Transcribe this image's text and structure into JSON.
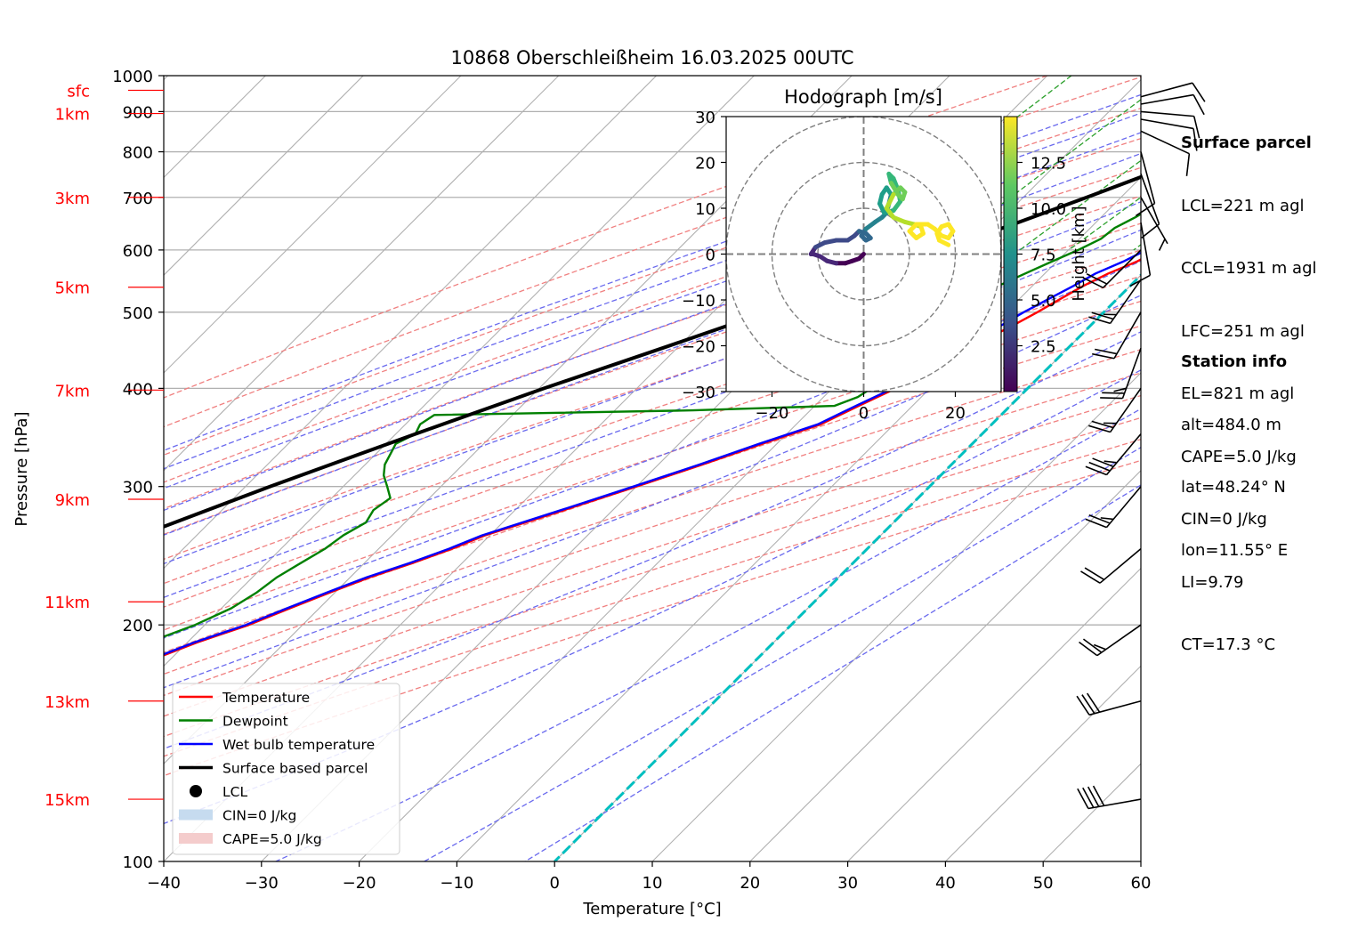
{
  "chart_data": {
    "type": "line",
    "title": "10868 Oberschleißheim 16.03.2025 00UTC",
    "xlabel": "Temperature [°C]",
    "ylabel": "Pressure [hPa]",
    "xlim": [
      -40,
      60
    ],
    "ylim": [
      1000,
      100
    ],
    "x_ticks": [
      "−40",
      "−30",
      "−20",
      "−10",
      "0",
      "10",
      "20",
      "30",
      "40",
      "50",
      "60"
    ],
    "y_ticks": [
      {
        "p": 100,
        "label": "100"
      },
      {
        "p": 200,
        "label": "200"
      },
      {
        "p": 300,
        "label": "300"
      },
      {
        "p": 400,
        "label": "400"
      },
      {
        "p": 500,
        "label": "500"
      },
      {
        "p": 600,
        "label": "600"
      },
      {
        "p": 700,
        "label": "700"
      },
      {
        "p": 800,
        "label": "800"
      },
      {
        "p": 900,
        "label": "900"
      },
      {
        "p": 1000,
        "label": "1000"
      }
    ],
    "height_ticks": [
      {
        "p": 120,
        "label": "15km"
      },
      {
        "p": 160,
        "label": "13km"
      },
      {
        "p": 214,
        "label": "11km"
      },
      {
        "p": 289,
        "label": "9km"
      },
      {
        "p": 398,
        "label": "7km"
      },
      {
        "p": 538,
        "label": "5km"
      },
      {
        "p": 700,
        "label": "3km"
      },
      {
        "p": 895,
        "label": "1km"
      },
      {
        "p": 958,
        "label": "sfc"
      }
    ],
    "series": [
      {
        "name": "Temperature",
        "color": "#ff0000",
        "p": [
          958,
          940,
          900,
          850,
          830,
          820,
          800,
          780,
          760,
          745,
          730,
          710,
          700,
          690,
          680,
          660,
          640,
          620,
          600,
          580,
          560,
          540,
          520,
          500,
          480,
          460,
          440,
          420,
          400,
          380,
          370,
          360,
          340,
          320,
          300,
          280,
          260,
          250,
          240,
          230,
          220,
          210,
          200,
          190,
          180,
          170,
          160,
          150,
          145,
          140,
          135,
          130,
          125,
          120,
          117
        ],
        "t": [
          3.8,
          3.2,
          2.8,
          5.2,
          5.8,
          6.2,
          6.8,
          5.8,
          5.2,
          4.6,
          4.0,
          3.5,
          3.2,
          4.2,
          4.0,
          2.2,
          1.0,
          0.5,
          -0.8,
          -1.8,
          -3.5,
          -4.8,
          -5.8,
          -6.8,
          -8.0,
          -9.5,
          -11.2,
          -12.5,
          -13.5,
          -15.5,
          -16.5,
          -17.5,
          -21.5,
          -25.5,
          -30.0,
          -35.0,
          -40.5,
          -42.5,
          -45.0,
          -48.0,
          -50.5,
          -53.0,
          -55.5,
          -59.0,
          -62.0,
          -65.0,
          -68.5,
          -72.5,
          -73.0,
          -75.0,
          -76.0,
          -78.0,
          -80.0,
          -83.0,
          -84.0
        ]
      },
      {
        "name": "Dewpoint",
        "color": "#008000",
        "p": [
          958,
          940,
          920,
          900,
          880,
          860,
          840,
          820,
          800,
          780,
          760,
          740,
          720,
          700,
          680,
          660,
          640,
          620,
          600,
          580,
          560,
          540,
          520,
          500,
          480,
          460,
          440,
          420,
          400,
          390,
          380,
          375,
          370,
          360,
          350,
          340,
          330,
          320,
          310,
          300,
          290,
          280,
          270,
          260,
          250,
          240,
          230,
          220,
          210,
          200,
          190,
          180,
          170,
          160,
          150,
          140,
          130,
          125,
          120
        ],
        "t": [
          3.0,
          2.5,
          2.0,
          1.0,
          0.5,
          0.0,
          0.2,
          -0.5,
          -1.0,
          -2.0,
          -2.5,
          -3.0,
          -4.2,
          -5.5,
          -5.8,
          -6.5,
          -7.5,
          -7.8,
          -9.0,
          -10.5,
          -12.0,
          -13.5,
          -15.2,
          -17.5,
          -16.5,
          -16.8,
          -15.5,
          -15.8,
          -16.0,
          -16.5,
          -18.0,
          -32.0,
          -58.0,
          -58.5,
          -58.0,
          -59.0,
          -58.5,
          -58.0,
          -57.0,
          -55.5,
          -54.0,
          -54.5,
          -54.0,
          -55.0,
          -55.5,
          -56.5,
          -57.5,
          -58.0,
          -59.0,
          -61.0,
          -64.0,
          -67.0,
          -71.5,
          -75.0,
          -79.5,
          -84.0,
          -89.0,
          -93.0,
          -96.0
        ]
      },
      {
        "name": "Wet bulb temperature",
        "color": "#0000ff",
        "p": [
          958,
          940,
          900,
          850,
          830,
          820,
          810,
          800,
          780,
          760,
          740,
          720,
          700,
          680,
          660,
          640,
          620,
          600,
          580,
          560,
          540,
          520,
          500,
          480,
          460,
          440,
          420,
          400,
          380,
          370,
          360,
          340,
          320,
          300,
          280,
          260,
          250,
          240,
          230,
          220,
          210,
          200,
          190,
          180,
          170,
          160,
          150,
          145,
          140,
          135,
          130,
          125,
          120,
          117
        ],
        "t": [
          3.2,
          2.8,
          2.0,
          1.0,
          0.8,
          0.5,
          1.8,
          4.5,
          4.8,
          4.2,
          3.5,
          3.0,
          2.6,
          1.5,
          0.8,
          -0.5,
          -1.0,
          -2.0,
          -3.2,
          -4.8,
          -5.8,
          -7.0,
          -8.2,
          -9.2,
          -10.3,
          -11.5,
          -12.8,
          -13.8,
          -15.8,
          -16.8,
          -17.8,
          -21.8,
          -25.8,
          -30.3,
          -35.3,
          -40.8,
          -42.8,
          -45.3,
          -48.3,
          -50.8,
          -53.3,
          -55.8,
          -59.3,
          -62.3,
          -65.3,
          -68.8,
          -72.8,
          -73.3,
          -75.3,
          -76.3,
          -78.3,
          -80.3,
          -83.3,
          -84.3
        ]
      },
      {
        "name": "Surface based parcel",
        "color": "#000000",
        "p": [
          958,
          950,
          940,
          935,
          925,
          900,
          870,
          840,
          800,
          750,
          700,
          650,
          600,
          550,
          500,
          450,
          400,
          350,
          300,
          250,
          210
        ],
        "t": [
          3.8,
          3.2,
          2.5,
          2.0,
          1.5,
          0.0,
          -1.5,
          -3.2,
          -5.8,
          -9.5,
          -13.5,
          -18.0,
          -23.0,
          -28.5,
          -34.5,
          -41.5,
          -49.5,
          -58.0,
          -67.5,
          -78.0,
          -89.0
        ]
      }
    ],
    "lcl": {
      "name": "LCL",
      "t": 3.1,
      "p": 932
    },
    "legend": [
      {
        "label": "Temperature",
        "kind": "line",
        "color": "#ff0000"
      },
      {
        "label": "Dewpoint",
        "kind": "line",
        "color": "#008000"
      },
      {
        "label": "Wet bulb temperature",
        "kind": "line",
        "color": "#0000ff"
      },
      {
        "label": "Surface based parcel",
        "kind": "line",
        "color": "#000000"
      },
      {
        "label": "LCL",
        "kind": "dot",
        "color": "#000000"
      },
      {
        "label": "CIN=0 J/kg",
        "kind": "patch",
        "color": "#c6dbef"
      },
      {
        "label": "CAPE=5.0 J/kg",
        "kind": "patch",
        "color": "#f4cccc"
      }
    ],
    "legend_position": "lower-left",
    "isotherm_step": 10,
    "dry_adiabats_thetaC": [
      -30,
      -20,
      -10,
      0,
      10,
      20,
      30,
      40,
      50,
      60,
      70,
      80,
      90,
      100,
      110,
      120,
      130
    ],
    "moist_adiabats_C": [
      -15,
      -10,
      -5,
      0,
      5,
      10,
      15,
      20,
      25,
      30,
      35,
      40,
      45,
      50
    ],
    "mixing_ratios_gkg": [
      0.4,
      1,
      2,
      3,
      5,
      8,
      12,
      16,
      20,
      25
    ],
    "zero_isotherm_color": "#00bfbf",
    "hodograph": {
      "type": "line",
      "title": "Hodograph [m/s]",
      "xlim": [
        -30,
        30
      ],
      "ylim": [
        -30,
        30
      ],
      "x_ticks": [
        "−20",
        "0",
        "20"
      ],
      "y_ticks": [
        "−30",
        "−20",
        "−10",
        "0",
        "10",
        "20",
        "30"
      ],
      "rings": [
        10,
        20,
        30
      ],
      "colorbar": {
        "label": "Height [km]",
        "ticks": [
          "2.5",
          "5.0",
          "7.5",
          "10.0",
          "12.5"
        ],
        "range": [
          0,
          15
        ],
        "colormap": "viridis"
      },
      "u": [
        0.0,
        -1.0,
        -2.5,
        -4.0,
        -6.0,
        -8.0,
        -9.5,
        -11.0,
        -11.5,
        -10.5,
        -8.5,
        -6.0,
        -3.5,
        -2.0,
        -1.0,
        0.5,
        1.5,
        0.5,
        -0.5,
        0.5,
        2.5,
        4.0,
        5.0,
        5.5,
        6.0,
        5.0,
        4.0,
        3.5,
        4.5,
        6.5,
        8.0,
        7.5,
        6.5,
        5.5,
        6.0,
        7.5,
        8.5,
        9.0,
        8.0,
        6.5,
        5.0,
        6.5,
        9.0,
        11.0,
        12.5,
        13.0,
        11.5,
        10.0,
        11.5,
        14.0,
        15.5,
        17.0,
        18.5,
        19.5,
        18.5,
        17.0,
        16.0,
        16.5,
        18.5
      ],
      "v": [
        0.0,
        -1.0,
        -1.5,
        -2.0,
        -2.0,
        -1.5,
        -0.5,
        0.0,
        0.0,
        1.5,
        2.5,
        3.0,
        3.0,
        4.0,
        5.0,
        4.5,
        3.5,
        3.0,
        4.0,
        5.5,
        7.0,
        8.0,
        9.0,
        11.0,
        13.0,
        14.5,
        13.0,
        11.0,
        9.0,
        9.5,
        11.5,
        14.0,
        16.5,
        17.5,
        15.5,
        13.0,
        12.0,
        13.5,
        14.5,
        13.0,
        10.0,
        8.0,
        7.0,
        6.5,
        6.0,
        4.5,
        3.5,
        5.0,
        6.5,
        6.5,
        5.5,
        4.0,
        3.5,
        5.0,
        6.5,
        6.0,
        4.5,
        3.0,
        2.0
      ],
      "z": [
        0.5,
        0.8,
        1.1,
        1.4,
        1.7,
        2.0,
        2.3,
        2.6,
        2.9,
        3.2,
        3.5,
        3.8,
        4.1,
        4.4,
        4.7,
        5.0,
        5.3,
        5.6,
        5.9,
        6.2,
        6.5,
        6.8,
        7.1,
        7.4,
        7.7,
        8.0,
        8.3,
        8.6,
        8.9,
        9.2,
        9.5,
        9.8,
        10.1,
        10.4,
        10.7,
        11.0,
        11.3,
        11.6,
        11.9,
        12.2,
        12.5,
        12.8,
        13.1,
        13.4,
        13.7,
        14.0,
        14.2,
        14.4,
        14.6,
        14.8,
        15.0,
        15.0,
        15.0,
        15.0,
        15.0,
        15.0,
        15.0,
        15.0,
        15.0
      ]
    },
    "wind_barbs": [
      {
        "p": 120,
        "dir": 260,
        "spd": 40
      },
      {
        "p": 160,
        "dir": 255,
        "spd": 30
      },
      {
        "p": 200,
        "dir": 235,
        "spd": 25
      },
      {
        "p": 250,
        "dir": 230,
        "spd": 20
      },
      {
        "p": 300,
        "dir": 220,
        "spd": 25
      },
      {
        "p": 350,
        "dir": 220,
        "spd": 35
      },
      {
        "p": 400,
        "dir": 215,
        "spd": 25
      },
      {
        "p": 450,
        "dir": 200,
        "spd": 25
      },
      {
        "p": 500,
        "dir": 210,
        "spd": 20
      },
      {
        "p": 550,
        "dir": 215,
        "spd": 25
      },
      {
        "p": 600,
        "dir": 225,
        "spd": 20
      },
      {
        "p": 650,
        "dir": 170,
        "spd": 10
      },
      {
        "p": 700,
        "dir": 150,
        "spd": 5
      },
      {
        "p": 750,
        "dir": 160,
        "spd": 10
      },
      {
        "p": 800,
        "dir": 165,
        "spd": 10
      },
      {
        "p": 850,
        "dir": 115,
        "spd": 10
      },
      {
        "p": 880,
        "dir": 100,
        "spd": 10
      },
      {
        "p": 900,
        "dir": 95,
        "spd": 10
      },
      {
        "p": 920,
        "dir": 80,
        "spd": 10
      },
      {
        "p": 940,
        "dir": 75,
        "spd": 10
      }
    ]
  },
  "surface_parcel": {
    "heading": "Surface parcel",
    "lines": [
      "LCL=221 m agl",
      "CCL=1931 m agl",
      "LFC=251 m agl",
      "EL=821 m agl",
      "CAPE=5.0 J/kg",
      "CIN=0 J/kg",
      "LI=9.79",
      "CT=17.3 °C"
    ]
  },
  "station_info": {
    "heading": "Station info",
    "lines": [
      "alt=484.0 m",
      "lat=48.24° N",
      "lon=11.55° E"
    ]
  }
}
